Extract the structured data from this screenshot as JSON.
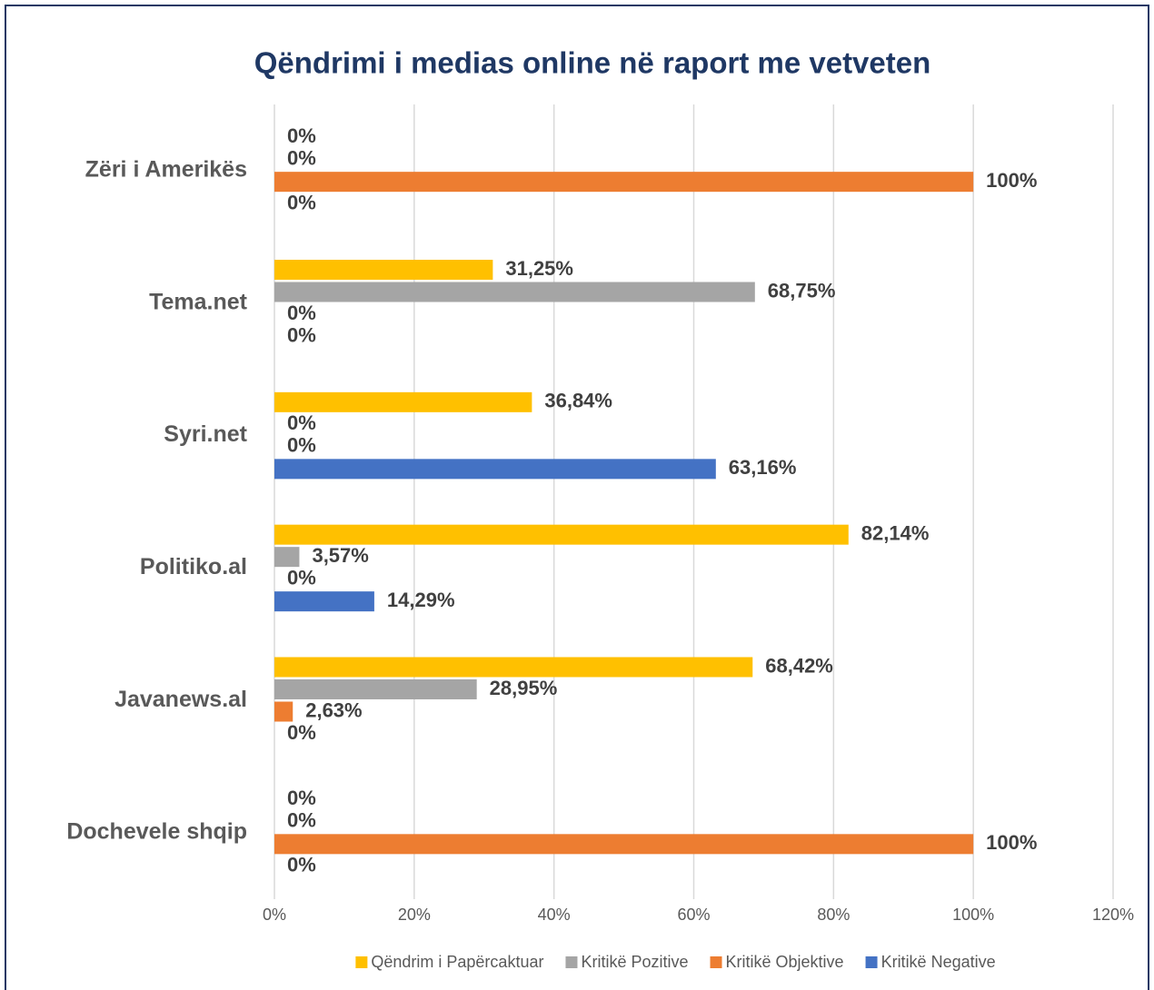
{
  "chart_data": {
    "type": "bar",
    "orientation": "horizontal",
    "title": "Qëndrimi i medias online në raport me vetveten",
    "categories": [
      "Zëri i Amerikës",
      "Tema.net",
      "Syri.net",
      "Politiko.al",
      "Javanews.al",
      "Dochevele shqip"
    ],
    "series": [
      {
        "name": "Qëndrim i Papërcaktuar",
        "color": "#ffc000",
        "values": [
          0,
          31.25,
          36.84,
          82.14,
          68.42,
          0
        ],
        "value_labels": [
          "0%",
          "31,25%",
          "36,84%",
          "82,14%",
          "68,42%",
          "0%"
        ]
      },
      {
        "name": "Kritikë Pozitive",
        "color": "#a5a5a5",
        "values": [
          0,
          68.75,
          0,
          3.57,
          28.95,
          0
        ],
        "value_labels": [
          "0%",
          "68,75%",
          "0%",
          "3,57%",
          "28,95%",
          "0%"
        ]
      },
      {
        "name": "Kritikë Objektive",
        "color": "#ed7d31",
        "values": [
          100,
          0,
          0,
          0,
          2.63,
          100
        ],
        "value_labels": [
          "100%",
          "0%",
          "0%",
          "0%",
          "2,63%",
          "100%"
        ]
      },
      {
        "name": "Kritikë Negative",
        "color": "#4472c4",
        "values": [
          0,
          0,
          63.16,
          14.29,
          0,
          0
        ],
        "value_labels": [
          "0%",
          "0%",
          "63,16%",
          "14,29%",
          "0%",
          "0%"
        ]
      }
    ],
    "xlim": [
      0,
      120
    ],
    "xticks": [
      {
        "value": 0,
        "label": "0%"
      },
      {
        "value": 20,
        "label": "20%"
      },
      {
        "value": 40,
        "label": "40%"
      },
      {
        "value": 60,
        "label": "60%"
      },
      {
        "value": 80,
        "label": "80%"
      },
      {
        "value": 100,
        "label": "100%"
      },
      {
        "value": 120,
        "label": "120%"
      }
    ],
    "grid": true,
    "legend": "bottom"
  }
}
